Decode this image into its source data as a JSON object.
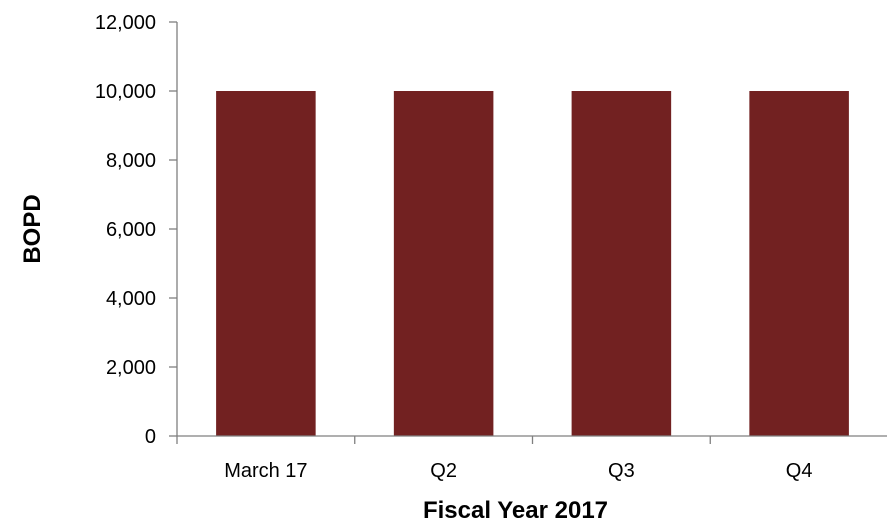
{
  "chart_data": {
    "type": "bar",
    "categories": [
      "March 17",
      "Q2",
      "Q3",
      "Q4"
    ],
    "values": [
      10000,
      10000,
      10000,
      10000
    ],
    "title": "",
    "xlabel": "Fiscal Year 2017",
    "ylabel": "BOPD",
    "ylim": [
      0,
      12000
    ],
    "yticks": [
      0,
      2000,
      4000,
      6000,
      8000,
      10000,
      12000
    ],
    "ytick_labels": [
      "0",
      "2,000",
      "4,000",
      "6,000",
      "8,000",
      "10,000",
      "12,000"
    ],
    "grid": false,
    "legend": "none",
    "bar_color": "#722121"
  }
}
